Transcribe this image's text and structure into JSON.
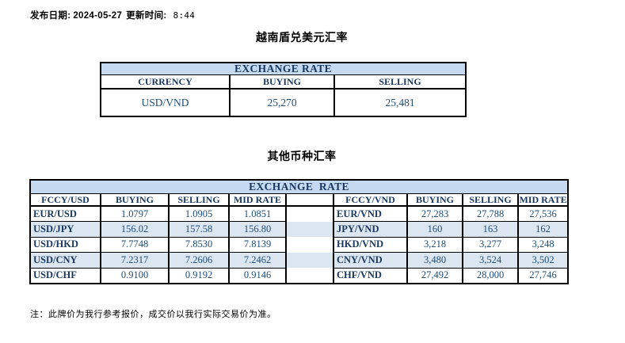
{
  "header": {
    "publish_date_label": "发布日期:",
    "publish_date": "2024-05-27",
    "update_time_label": "更新时间:",
    "update_time": "8:44"
  },
  "section1": {
    "title": "越南盾兑美元汇率",
    "table": {
      "header": "EXCHANGE RATE",
      "columns": [
        "CURRENCY",
        "BUYING",
        "SELLING"
      ],
      "rows": [
        [
          "USD/VND",
          "25,270",
          "25,481"
        ]
      ]
    }
  },
  "section2": {
    "title": "其他币种汇率",
    "table": {
      "header": "EXCHANGE  RATE",
      "left": {
        "columns": [
          "FCCY/USD",
          "BUYING",
          "SELLING",
          "MID RATE"
        ],
        "rows": [
          [
            "EUR/USD",
            "1.0797",
            "1.0905",
            "1.0851"
          ],
          [
            "USD/JPY",
            "156.02",
            "157.58",
            "156.80"
          ],
          [
            "USD/HKD",
            "7.7748",
            "7.8530",
            "7.8139"
          ],
          [
            "USD/CNY",
            "7.2317",
            "7.2606",
            "7.2462"
          ],
          [
            "USD/CHF",
            "0.9100",
            "0.9192",
            "0.9146"
          ]
        ]
      },
      "right": {
        "columns": [
          "FCCY/VND",
          "BUYING",
          "SELLING",
          "MID RATE"
        ],
        "rows": [
          [
            "EUR/VND",
            "27,283",
            "27,788",
            "27,536"
          ],
          [
            "JPY/VND",
            "160",
            "163",
            "162"
          ],
          [
            "HKD/VND",
            "3,218",
            "3,277",
            "3,248"
          ],
          [
            "CNY/VND",
            "3,480",
            "3,524",
            "3,502"
          ],
          [
            "CHF/VND",
            "27,492",
            "28,000",
            "27,746"
          ]
        ]
      }
    }
  },
  "footer": {
    "note": "注：此牌价为我行参考报价，成交价以我行实际交易价为准。"
  },
  "colors": {
    "header_bg": "#C5D9F1",
    "row_stripe": "#DCE6F1",
    "label_text": "#17375E",
    "value_text": "#1F4E79",
    "border": "#000000"
  }
}
